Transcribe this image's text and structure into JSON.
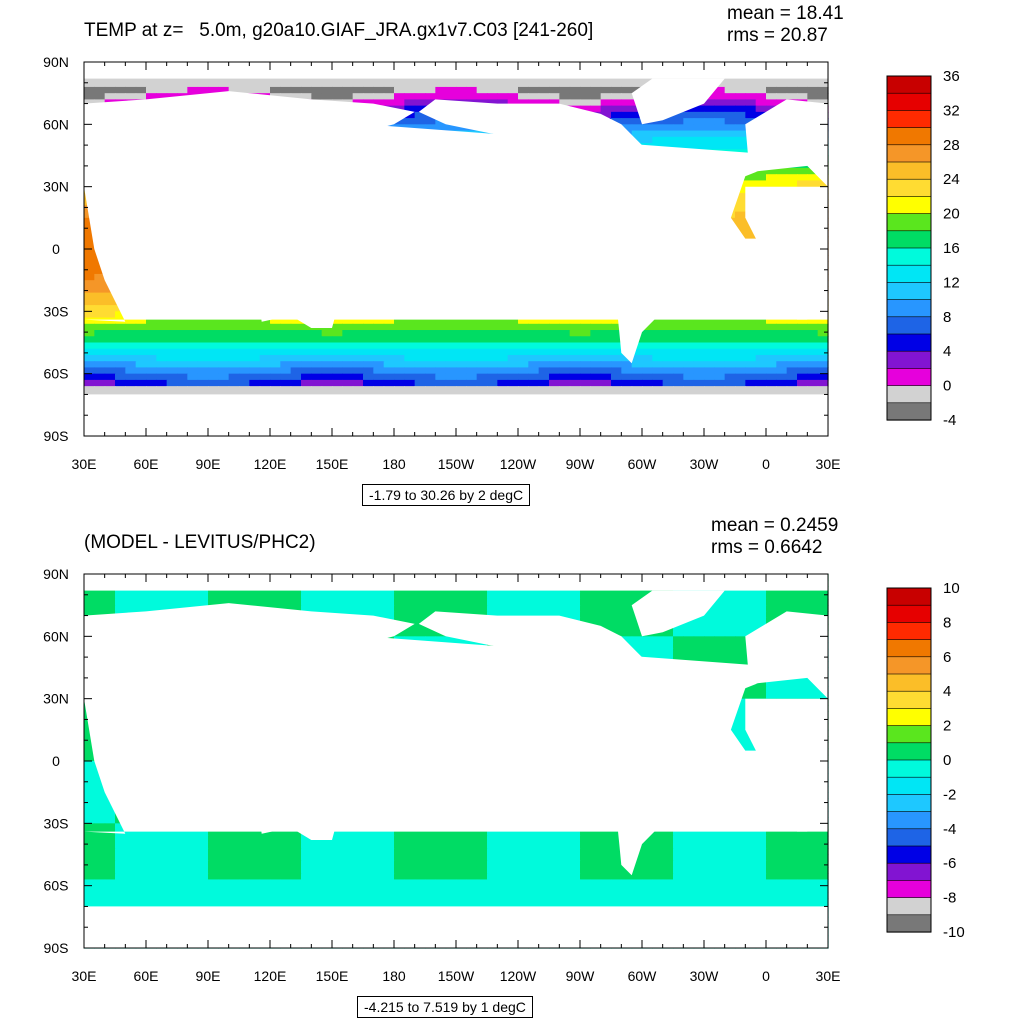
{
  "panels": [
    {
      "title": "TEMP at z=   5.0m, g20a10.GIAF_JRA.gx1v7.C03 [241-260]",
      "stats": {
        "mean": "mean = 18.41",
        "rms": "rms = 20.87"
      },
      "contour_info": "-1.79 to 30.26 by 2 degC",
      "colorbar": {
        "labels": [
          "36",
          "32",
          "28",
          "24",
          "20",
          "16",
          "12",
          "8",
          "4",
          "0",
          "-4"
        ],
        "colors": [
          "#c80000",
          "#e60000",
          "#ff2a00",
          "#f07800",
          "#f59628",
          "#fbbe28",
          "#ffdc32",
          "#ffff00",
          "#5ae61e",
          "#00dc64",
          "#00fadc",
          "#00e6f5",
          "#1ec8ff",
          "#2896ff",
          "#1e64e6",
          "#0000e6",
          "#8214d2",
          "#e600dc",
          "#d2d2d2",
          "#787878"
        ]
      }
    },
    {
      "title": "(MODEL - LEVITUS/PHC2)",
      "stats": {
        "mean": "mean = 0.2459",
        "rms": "rms = 0.6642"
      },
      "contour_info": "-4.215 to 7.519 by 1 degC",
      "colorbar": {
        "labels": [
          "10",
          "8",
          "6",
          "4",
          "2",
          "0",
          "-2",
          "-4",
          "-6",
          "-8",
          "-10"
        ],
        "colors": [
          "#c80000",
          "#e60000",
          "#ff2a00",
          "#f07800",
          "#f59628",
          "#fbbe28",
          "#ffdc32",
          "#ffff00",
          "#5ae61e",
          "#00dc64",
          "#00fadc",
          "#00e6f5",
          "#1ec8ff",
          "#2896ff",
          "#1e64e6",
          "#0000e6",
          "#8214d2",
          "#e600dc",
          "#d2d2d2",
          "#787878"
        ]
      }
    }
  ],
  "chart_data": [
    {
      "type": "heatmap",
      "title": "TEMP at z=   5.0m, g20a10.GIAF_JRA.gx1v7.C03 [241-260]",
      "x_tick_labels": [
        "30E",
        "60E",
        "90E",
        "120E",
        "150E",
        "180",
        "150W",
        "120W",
        "90W",
        "60W",
        "30W",
        "0",
        "30E"
      ],
      "y_tick_labels": [
        "90N",
        "60N",
        "30N",
        "0",
        "30S",
        "60S",
        "90S"
      ],
      "xlim": [
        30,
        390
      ],
      "ylim": [
        -90,
        90
      ],
      "units": "degC",
      "colorbar_ticks": [
        36,
        32,
        28,
        24,
        20,
        16,
        12,
        8,
        4,
        0,
        -4
      ],
      "approx_zonal_mean_profile": {
        "lat": [
          -60,
          -45,
          -30,
          0,
          30,
          45,
          60
        ],
        "value": [
          1,
          8,
          18,
          28,
          22,
          12,
          5
        ]
      }
    },
    {
      "type": "heatmap",
      "title": "(MODEL - LEVITUS/PHC2)",
      "x_tick_labels": [
        "30E",
        "60E",
        "90E",
        "120E",
        "150E",
        "180",
        "150W",
        "120W",
        "90W",
        "60W",
        "30W",
        "0",
        "30E"
      ],
      "y_tick_labels": [
        "90N",
        "60N",
        "30N",
        "0",
        "30S",
        "60S",
        "90S"
      ],
      "xlim": [
        30,
        390
      ],
      "ylim": [
        -90,
        90
      ],
      "units": "degC",
      "colorbar_ticks": [
        10,
        8,
        6,
        4,
        2,
        0,
        -2,
        -4,
        -6,
        -8,
        -10
      ],
      "approx_zonal_mean_profile": {
        "lat": [
          -60,
          -45,
          -30,
          0,
          30,
          45,
          60
        ],
        "value": [
          0.5,
          0.5,
          0,
          0,
          0.2,
          0,
          -0.5
        ]
      }
    }
  ]
}
